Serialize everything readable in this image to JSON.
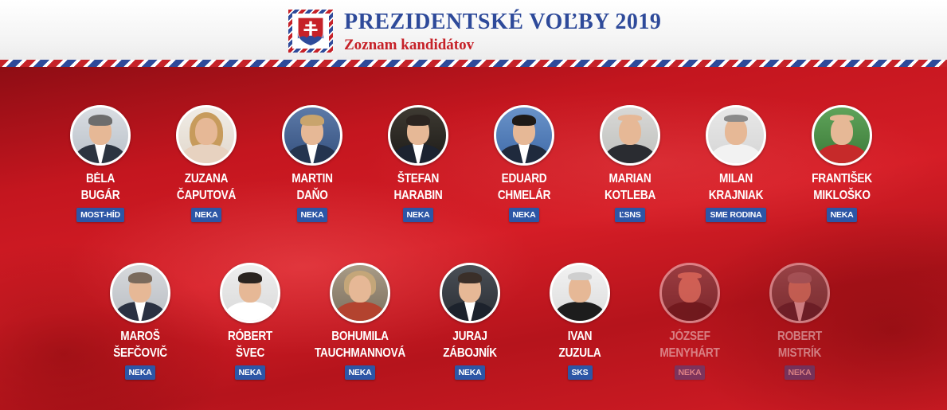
{
  "header": {
    "title": "PREZIDENTSKÉ VOĽBY 2019",
    "subtitle": "Zoznam kandidátov",
    "logo_icon": "slovak-coat-of-arms-icon",
    "colors": {
      "red": "#c62128",
      "blue": "#2e4a9a",
      "white": "#ffffff"
    }
  },
  "candidates": [
    {
      "first": "BÉLA",
      "last": "BUGÁR",
      "party": "MOST-HÍD",
      "withdrawn": false
    },
    {
      "first": "ZUZANA",
      "last": "ČAPUTOVÁ",
      "party": "NEKA",
      "withdrawn": false
    },
    {
      "first": "MARTIN",
      "last": "DAŇO",
      "party": "NEKA",
      "withdrawn": false
    },
    {
      "first": "ŠTEFAN",
      "last": "HARABIN",
      "party": "NEKA",
      "withdrawn": false
    },
    {
      "first": "EDUARD",
      "last": "CHMELÁR",
      "party": "NEKA",
      "withdrawn": false
    },
    {
      "first": "MARIAN",
      "last": "KOTLEBA",
      "party": "ĽSNS",
      "withdrawn": false
    },
    {
      "first": "MILAN",
      "last": "KRAJNIAK",
      "party": "SME RODINA",
      "withdrawn": false
    },
    {
      "first": "FRANTIŠEK",
      "last": "MIKLOŠKO",
      "party": "NEKA",
      "withdrawn": false
    },
    {
      "first": "MAROŠ",
      "last": "ŠEFČOVIČ",
      "party": "NEKA",
      "withdrawn": false
    },
    {
      "first": "RÓBERT",
      "last": "ŠVEC",
      "party": "NEKA",
      "withdrawn": false
    },
    {
      "first": "BOHUMILA",
      "last": "TAUCHMANNOVÁ",
      "party": "NEKA",
      "withdrawn": false
    },
    {
      "first": "JURAJ",
      "last": "ZÁBOJNÍK",
      "party": "NEKA",
      "withdrawn": false
    },
    {
      "first": "IVAN",
      "last": "ZUZULA",
      "party": "SKS",
      "withdrawn": false
    },
    {
      "first": "JÓZSEF",
      "last": "MENYHÁRT",
      "party": "NEKA",
      "withdrawn": true
    },
    {
      "first": "ROBERT",
      "last": "MISTRÍK",
      "party": "NEKA",
      "withdrawn": true
    }
  ]
}
